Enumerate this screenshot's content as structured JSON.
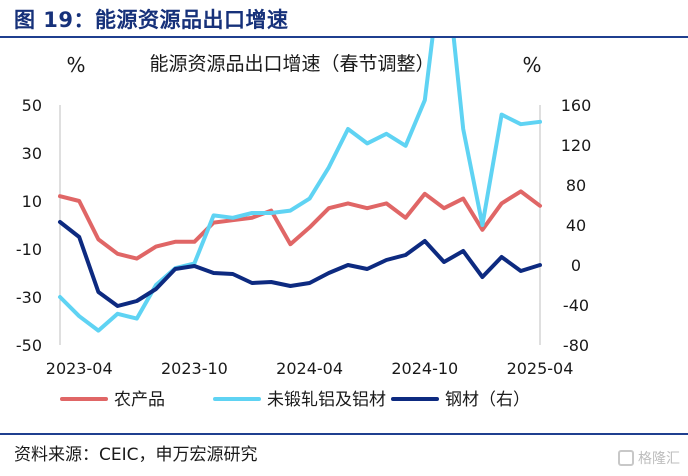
{
  "header": {
    "title": "图 19：能源资源品出口增速"
  },
  "footer": {
    "source": "资料来源：CEIC，申万宏源研究",
    "watermark": "格隆汇"
  },
  "chart_data": {
    "type": "line",
    "title": "能源资源品出口增速（春节调整）",
    "y_left_unit": "%",
    "y_right_unit": "%",
    "y_left_ticks": [
      "50",
      "30",
      "10",
      "-10",
      "-30",
      "-50"
    ],
    "y_right_ticks": [
      "160",
      "120",
      "80",
      "40",
      "0",
      "-40",
      "-80"
    ],
    "ylim_left": [
      -50,
      50
    ],
    "ylim_right": [
      -80,
      160
    ],
    "x_tick_labels": [
      "2023-04",
      "2023-10",
      "2024-04",
      "2024-10",
      "2025-04"
    ],
    "x": [
      "2023-03",
      "2023-04",
      "2023-05",
      "2023-06",
      "2023-07",
      "2023-08",
      "2023-09",
      "2023-10",
      "2023-11",
      "2023-12",
      "2024-01",
      "2024-02",
      "2024-03",
      "2024-04",
      "2024-05",
      "2024-06",
      "2024-07",
      "2024-08",
      "2024-09",
      "2024-10",
      "2024-11",
      "2024-12",
      "2025-01",
      "2025-02",
      "2025-03",
      "2025-04"
    ],
    "grid": false,
    "legend_position": "bottom",
    "series": [
      {
        "name": "农产品",
        "axis": "left",
        "color": "#e06666",
        "values": [
          12,
          10,
          -6,
          -12,
          -14,
          -9,
          -7,
          -7,
          1,
          2,
          3,
          6,
          -8,
          -1,
          7,
          9,
          7,
          9,
          3,
          13,
          7,
          11,
          -2,
          9,
          14,
          8
        ]
      },
      {
        "name": "未锻轧铝及铝材",
        "axis": "left",
        "color": "#5fd3f3",
        "values": [
          -30,
          -38,
          -44,
          -37,
          -39,
          -25,
          -18,
          -16,
          4,
          3,
          5,
          5,
          6,
          11,
          24,
          40,
          34,
          38,
          33,
          52,
          117,
          40,
          0,
          46,
          42,
          43
        ]
      },
      {
        "name": "钢材（右）",
        "axis": "right",
        "color": "#0d2a80",
        "values": [
          43,
          28,
          -27,
          -41,
          -36,
          -24,
          -4,
          -1,
          -8,
          -9,
          -18,
          -17,
          -21,
          -18,
          -8,
          0,
          -4,
          5,
          10,
          24,
          3,
          14,
          -12,
          8,
          -6,
          0
        ]
      }
    ]
  }
}
